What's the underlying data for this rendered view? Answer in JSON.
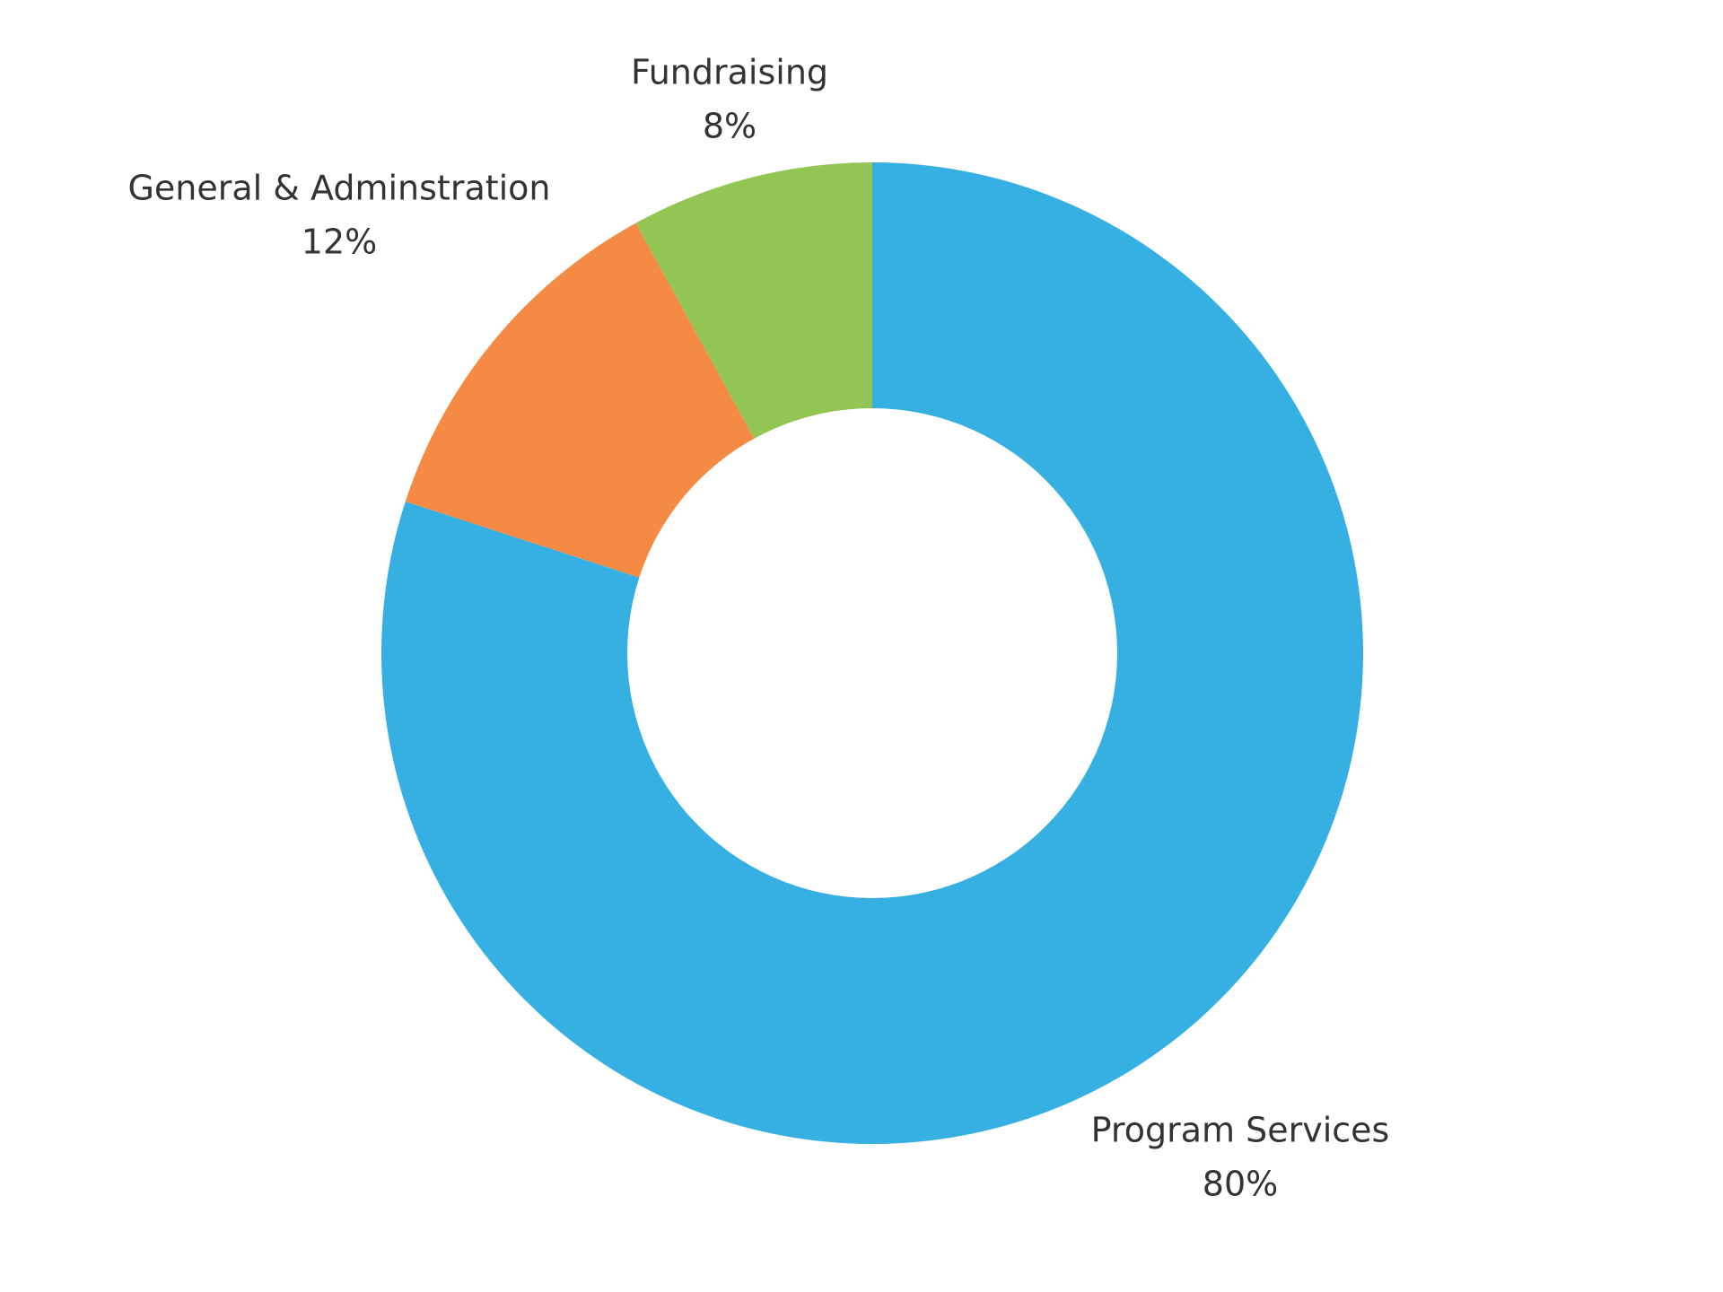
{
  "chart_data": {
    "type": "pie",
    "categories": [
      "Program Services",
      "General & Adminstration",
      "Fundraising"
    ],
    "values": [
      80,
      12,
      8
    ],
    "value_labels": [
      "80%",
      "12%",
      "8%"
    ],
    "colors": [
      "#36b0e3",
      "#f48a43",
      "#92c553"
    ],
    "donut": true
  }
}
